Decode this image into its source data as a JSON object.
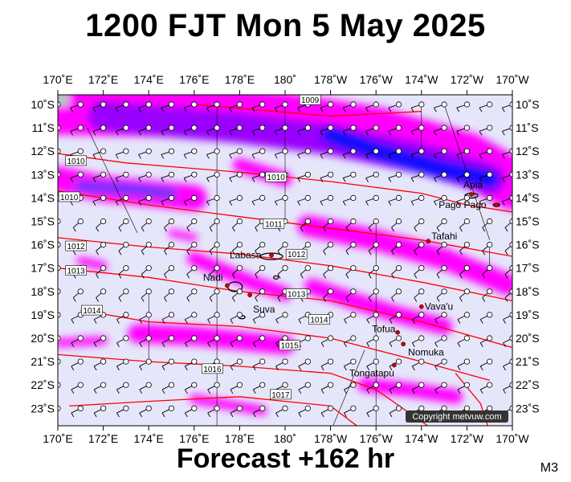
{
  "header": {
    "title": "1200 FJT Mon 5 May 2025"
  },
  "footer": {
    "forecast": "Forecast +162 hr",
    "code": "M3"
  },
  "map": {
    "lon_labels": [
      "170˚E",
      "172˚E",
      "174˚E",
      "176˚E",
      "178˚E",
      "180˚",
      "178˚W",
      "176˚W",
      "174˚W",
      "172˚W",
      "170˚W"
    ],
    "lat_labels": [
      "10˚S",
      "11˚S",
      "12˚S",
      "13˚S",
      "14˚S",
      "15˚S",
      "16˚S",
      "17˚S",
      "18˚S",
      "19˚S",
      "20˚S",
      "21˚S",
      "22˚S",
      "23˚S"
    ],
    "places": [
      {
        "name": "Apia",
        "lon": -171.8,
        "lat": -13.85,
        "dx": -10,
        "dy": -8
      },
      {
        "name": "Pago Pago",
        "lon": -170.7,
        "lat": -14.3,
        "dx": -72,
        "dy": 4
      },
      {
        "name": "Tafahi",
        "lon": -173.7,
        "lat": -15.85,
        "dx": 4,
        "dy": -2
      },
      {
        "name": "Labasa",
        "lon": 179.4,
        "lat": -16.45,
        "dx": -52,
        "dy": 4
      },
      {
        "name": "Nadi",
        "lon": 177.45,
        "lat": -17.75,
        "dx": -30,
        "dy": -6
      },
      {
        "name": "Suva",
        "lon": 178.45,
        "lat": -18.15,
        "dx": 4,
        "dy": 22
      },
      {
        "name": "Vava'u",
        "lon": -174.0,
        "lat": -18.65,
        "dx": 4,
        "dy": 4
      },
      {
        "name": "Tofua",
        "lon": -175.05,
        "lat": -19.75,
        "dx": -32,
        "dy": 0
      },
      {
        "name": "Nomuka",
        "lon": -174.8,
        "lat": -20.25,
        "dx": 6,
        "dy": 14
      },
      {
        "name": "Tongatapu",
        "lon": -175.2,
        "lat": -21.15,
        "dx": -56,
        "dy": 14
      }
    ],
    "isobar_labels": [
      {
        "text": "1009",
        "lon": -178.9,
        "lat": -9.8
      },
      {
        "text": "1010",
        "lon": 170.8,
        "lat": -12.4
      },
      {
        "text": "1010",
        "lon": 179.6,
        "lat": -13.1
      },
      {
        "text": "1010",
        "lon": 170.5,
        "lat": -13.95
      },
      {
        "text": "1011",
        "lon": 179.5,
        "lat": -15.1
      },
      {
        "text": "1012",
        "lon": 170.8,
        "lat": -16.05
      },
      {
        "text": "1012",
        "lon": -179.5,
        "lat": -16.4
      },
      {
        "text": "1013",
        "lon": 170.8,
        "lat": -17.1
      },
      {
        "text": "1013",
        "lon": -179.5,
        "lat": -18.1
      },
      {
        "text": "1014",
        "lon": 171.5,
        "lat": -18.8
      },
      {
        "text": "1014",
        "lon": -178.5,
        "lat": -19.2
      },
      {
        "text": "1015",
        "lon": -179.8,
        "lat": -20.3
      },
      {
        "text": "1016",
        "lon": 176.8,
        "lat": -21.3
      },
      {
        "text": "1017",
        "lon": 179.8,
        "lat": -22.4
      }
    ],
    "copyright": "Copyright metvuw.com",
    "colors": {
      "ocean": "#e6e6fb",
      "magenta": "#ff00ff",
      "purple": "#9900ff",
      "blue": "#0000ff",
      "isobar": "#ff0000",
      "land": "#000000"
    }
  }
}
